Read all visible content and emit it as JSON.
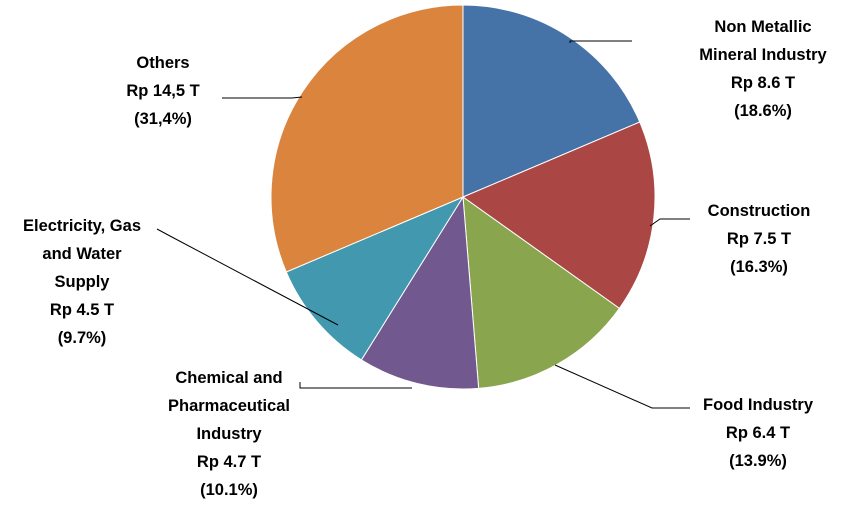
{
  "chart_data": {
    "type": "pie",
    "title": "",
    "series": [
      {
        "values": [
          8.6,
          7.5,
          6.4,
          4.7,
          4.5,
          14.5
        ],
        "categories": [
          "Non Metallic Mineral Industry",
          "Construction",
          "Food Industry",
          "Chemical and Pharmaceutical Industry",
          "Electricity, Gas and Water Supply",
          "Others"
        ]
      }
    ],
    "slices": [
      {
        "label_lines": [
          "Non Metallic",
          "Mineral Industry"
        ],
        "value_text": "Rp  8.6 T",
        "percent_text": "(18.6%)",
        "value": 8.6,
        "percent": 18.6,
        "color": "#4572A7"
      },
      {
        "label_lines": [
          "Construction"
        ],
        "value_text": "Rp 7.5 T",
        "percent_text": "(16.3%)",
        "value": 7.5,
        "percent": 16.3,
        "color": "#AA4643"
      },
      {
        "label_lines": [
          "Food Industry"
        ],
        "value_text": "Rp  6.4 T",
        "percent_text": "(13.9%)",
        "value": 6.4,
        "percent": 13.9,
        "color": "#89A54E"
      },
      {
        "label_lines": [
          "Chemical and",
          "Pharmaceutical",
          "Industry"
        ],
        "value_text": "Rp  4.7 T",
        "percent_text": "(10.1%)",
        "value": 4.7,
        "percent": 10.1,
        "color": "#71588F"
      },
      {
        "label_lines": [
          "Electricity, Gas",
          "and Water",
          "Supply"
        ],
        "value_text": "Rp  4.5 T",
        "percent_text": "(9.7%)",
        "value": 4.5,
        "percent": 9.7,
        "color": "#4198AF"
      },
      {
        "label_lines": [
          "Others"
        ],
        "value_text": "Rp 14,5 T",
        "percent_text": "(31,4%)",
        "value": 14.5,
        "percent": 31.4,
        "color": "#DB843D"
      }
    ],
    "legend": "none",
    "start_angle_deg": 0,
    "direction": "clockwise"
  }
}
